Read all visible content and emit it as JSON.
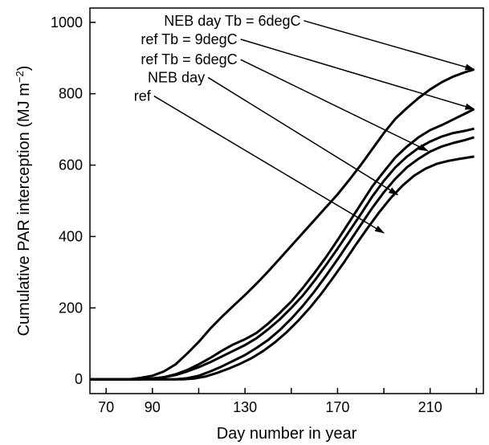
{
  "chart_data": {
    "type": "line",
    "xlabel": "Day number in year",
    "ylabel_main": "Cumulative PAR interception (MJ m",
    "ylabel_sup": "−2",
    "ylabel_close": ")",
    "xlim": [
      63,
      233
    ],
    "ylim": [
      -40,
      1040
    ],
    "xticks": [
      70,
      90,
      130,
      170,
      210
    ],
    "xticks_minor": [
      110,
      150,
      190,
      230
    ],
    "yticks": [
      0,
      200,
      400,
      600,
      800,
      1000
    ],
    "grid": false,
    "legend": "annotations with arrows",
    "series": [
      {
        "name": "NEB day Tb = 6degC",
        "points": [
          [
            63,
            0
          ],
          [
            80,
            0
          ],
          [
            85,
            4
          ],
          [
            90,
            10
          ],
          [
            95,
            22
          ],
          [
            100,
            42
          ],
          [
            105,
            72
          ],
          [
            110,
            105
          ],
          [
            115,
            142
          ],
          [
            120,
            175
          ],
          [
            125,
            206
          ],
          [
            130,
            236
          ],
          [
            135,
            268
          ],
          [
            140,
            302
          ],
          [
            145,
            338
          ],
          [
            150,
            374
          ],
          [
            155,
            410
          ],
          [
            160,
            446
          ],
          [
            165,
            482
          ],
          [
            170,
            518
          ],
          [
            175,
            558
          ],
          [
            180,
            600
          ],
          [
            185,
            645
          ],
          [
            190,
            690
          ],
          [
            195,
            730
          ],
          [
            200,
            760
          ],
          [
            205,
            788
          ],
          [
            210,
            812
          ],
          [
            215,
            832
          ],
          [
            220,
            848
          ],
          [
            225,
            860
          ],
          [
            229,
            868
          ]
        ],
        "label_xy": [
          95,
          991
        ],
        "arrow_to": [
          229,
          868
        ]
      },
      {
        "name": "ref Tb = 9degC",
        "points": [
          [
            63,
            0
          ],
          [
            85,
            0
          ],
          [
            90,
            2
          ],
          [
            95,
            6
          ],
          [
            100,
            14
          ],
          [
            105,
            26
          ],
          [
            110,
            42
          ],
          [
            115,
            60
          ],
          [
            120,
            80
          ],
          [
            125,
            98
          ],
          [
            130,
            112
          ],
          [
            135,
            130
          ],
          [
            140,
            156
          ],
          [
            145,
            186
          ],
          [
            150,
            218
          ],
          [
            155,
            256
          ],
          [
            160,
            298
          ],
          [
            165,
            342
          ],
          [
            170,
            390
          ],
          [
            175,
            440
          ],
          [
            180,
            490
          ],
          [
            185,
            540
          ],
          [
            190,
            582
          ],
          [
            195,
            622
          ],
          [
            200,
            652
          ],
          [
            205,
            678
          ],
          [
            210,
            698
          ],
          [
            215,
            712
          ],
          [
            220,
            728
          ],
          [
            225,
            744
          ],
          [
            229,
            757
          ]
        ],
        "label_xy": [
          85,
          939
        ],
        "arrow_to": [
          229,
          757
        ]
      },
      {
        "name": "ref Tb = 6degC",
        "points": [
          [
            63,
            0
          ],
          [
            85,
            0
          ],
          [
            90,
            2
          ],
          [
            95,
            6
          ],
          [
            100,
            12
          ],
          [
            105,
            22
          ],
          [
            110,
            34
          ],
          [
            115,
            48
          ],
          [
            120,
            64
          ],
          [
            125,
            80
          ],
          [
            130,
            96
          ],
          [
            135,
            115
          ],
          [
            140,
            140
          ],
          [
            145,
            168
          ],
          [
            150,
            200
          ],
          [
            155,
            235
          ],
          [
            160,
            276
          ],
          [
            165,
            320
          ],
          [
            170,
            366
          ],
          [
            175,
            414
          ],
          [
            180,
            462
          ],
          [
            185,
            512
          ],
          [
            190,
            556
          ],
          [
            195,
            594
          ],
          [
            200,
            624
          ],
          [
            205,
            648
          ],
          [
            210,
            666
          ],
          [
            215,
            680
          ],
          [
            220,
            690
          ],
          [
            225,
            696
          ],
          [
            229,
            702
          ]
        ],
        "label_xy": [
          85,
          882
        ],
        "arrow_to": [
          209,
          640
        ]
      },
      {
        "name": "NEB day",
        "points": [
          [
            63,
            0
          ],
          [
            100,
            0
          ],
          [
            105,
            3
          ],
          [
            110,
            10
          ],
          [
            115,
            22
          ],
          [
            120,
            36
          ],
          [
            125,
            52
          ],
          [
            130,
            68
          ],
          [
            135,
            88
          ],
          [
            140,
            110
          ],
          [
            145,
            138
          ],
          [
            150,
            170
          ],
          [
            155,
            206
          ],
          [
            160,
            246
          ],
          [
            165,
            290
          ],
          [
            170,
            336
          ],
          [
            175,
            384
          ],
          [
            180,
            432
          ],
          [
            185,
            480
          ],
          [
            190,
            524
          ],
          [
            195,
            562
          ],
          [
            200,
            594
          ],
          [
            205,
            618
          ],
          [
            210,
            638
          ],
          [
            215,
            652
          ],
          [
            220,
            662
          ],
          [
            225,
            670
          ],
          [
            229,
            678
          ]
        ],
        "label_xy": [
          88,
          832
        ],
        "arrow_to": [
          196,
          517
        ]
      },
      {
        "name": "ref",
        "points": [
          [
            63,
            0
          ],
          [
            103,
            0
          ],
          [
            108,
            2
          ],
          [
            113,
            8
          ],
          [
            118,
            18
          ],
          [
            123,
            30
          ],
          [
            128,
            44
          ],
          [
            133,
            60
          ],
          [
            138,
            80
          ],
          [
            143,
            104
          ],
          [
            148,
            132
          ],
          [
            153,
            164
          ],
          [
            158,
            200
          ],
          [
            163,
            240
          ],
          [
            168,
            284
          ],
          [
            173,
            330
          ],
          [
            178,
            378
          ],
          [
            183,
            424
          ],
          [
            188,
            468
          ],
          [
            193,
            508
          ],
          [
            198,
            542
          ],
          [
            203,
            570
          ],
          [
            208,
            590
          ],
          [
            213,
            604
          ],
          [
            218,
            612
          ],
          [
            223,
            618
          ],
          [
            229,
            624
          ]
        ],
        "label_xy": [
          82,
          780
        ],
        "arrow_to": [
          190,
          410
        ]
      }
    ]
  }
}
